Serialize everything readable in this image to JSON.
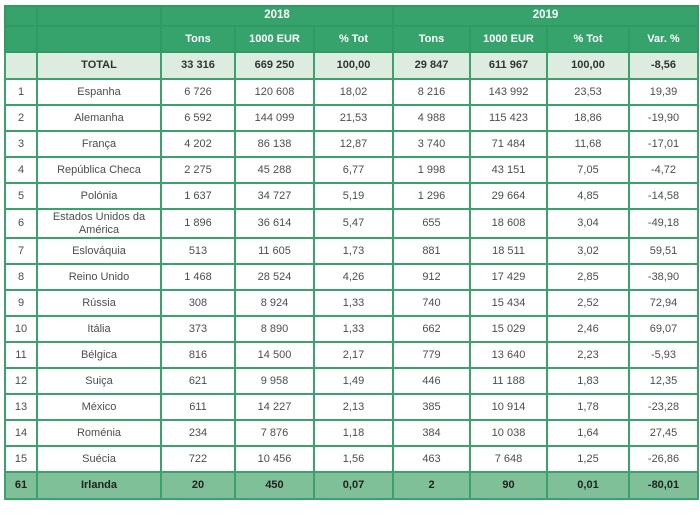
{
  "colors": {
    "header_green": "#35a36b",
    "grid_green": "#3ba26c",
    "header_border_green": "#2f9b63",
    "total_row_bg": "#dcecdf",
    "highlight_row_bg": "#80c098",
    "header_text": "#ffffff",
    "body_text": "#4d4d4d"
  },
  "chart_data": {
    "type": "table",
    "year_groups": [
      {
        "label": "2018",
        "colspan": 3
      },
      {
        "label": "2019",
        "colspan": 4
      }
    ],
    "sub_headers": [
      "Tons",
      "1000 EUR",
      "% Tot",
      "Tons",
      "1000 EUR",
      "% Tot",
      "Var. %"
    ],
    "total_row": {
      "rank": "",
      "country": "TOTAL",
      "values": [
        "33 316",
        "669 250",
        "100,00",
        "29 847",
        "611 967",
        "100,00",
        "-8,56"
      ]
    },
    "rows": [
      {
        "rank": "1",
        "country": "Espanha",
        "values": [
          "6 726",
          "120 608",
          "18,02",
          "8 216",
          "143 992",
          "23,53",
          "19,39"
        ]
      },
      {
        "rank": "2",
        "country": "Alemanha",
        "values": [
          "6 592",
          "144 099",
          "21,53",
          "4 988",
          "115 423",
          "18,86",
          "-19,90"
        ]
      },
      {
        "rank": "3",
        "country": "França",
        "values": [
          "4 202",
          "86 138",
          "12,87",
          "3 740",
          "71 484",
          "11,68",
          "-17,01"
        ]
      },
      {
        "rank": "4",
        "country": "República Checa",
        "values": [
          "2 275",
          "45 288",
          "6,77",
          "1 998",
          "43 151",
          "7,05",
          "-4,72"
        ]
      },
      {
        "rank": "5",
        "country": "Polónia",
        "values": [
          "1 637",
          "34 727",
          "5,19",
          "1 296",
          "29 664",
          "4,85",
          "-14,58"
        ]
      },
      {
        "rank": "6",
        "country": "Estados Unidos da América",
        "values": [
          "1 896",
          "36 614",
          "5,47",
          "655",
          "18 608",
          "3,04",
          "-49,18"
        ]
      },
      {
        "rank": "7",
        "country": "Eslováquia",
        "values": [
          "513",
          "11 605",
          "1,73",
          "881",
          "18 511",
          "3,02",
          "59,51"
        ]
      },
      {
        "rank": "8",
        "country": "Reino Unido",
        "values": [
          "1 468",
          "28 524",
          "4,26",
          "912",
          "17 429",
          "2,85",
          "-38,90"
        ]
      },
      {
        "rank": "9",
        "country": "Rússia",
        "values": [
          "308",
          "8 924",
          "1,33",
          "740",
          "15 434",
          "2,52",
          "72,94"
        ]
      },
      {
        "rank": "10",
        "country": "Itália",
        "values": [
          "373",
          "8 890",
          "1,33",
          "662",
          "15 029",
          "2,46",
          "69,07"
        ]
      },
      {
        "rank": "11",
        "country": "Bélgica",
        "values": [
          "816",
          "14 500",
          "2,17",
          "779",
          "13 640",
          "2,23",
          "-5,93"
        ]
      },
      {
        "rank": "12",
        "country": "Suiça",
        "values": [
          "621",
          "9 958",
          "1,49",
          "446",
          "11 188",
          "1,83",
          "12,35"
        ]
      },
      {
        "rank": "13",
        "country": "México",
        "values": [
          "611",
          "14 227",
          "2,13",
          "385",
          "10 914",
          "1,78",
          "-23,28"
        ]
      },
      {
        "rank": "14",
        "country": "Roménia",
        "values": [
          "234",
          "7 876",
          "1,18",
          "384",
          "10 038",
          "1,64",
          "27,45"
        ]
      },
      {
        "rank": "15",
        "country": "Suécia",
        "values": [
          "722",
          "10 456",
          "1,56",
          "463",
          "7 648",
          "1,25",
          "-26,86"
        ]
      },
      {
        "rank": "61",
        "country": "Irlanda",
        "values": [
          "20",
          "450",
          "0,07",
          "2",
          "90",
          "0,01",
          "-80,01"
        ],
        "highlight": true
      }
    ]
  }
}
